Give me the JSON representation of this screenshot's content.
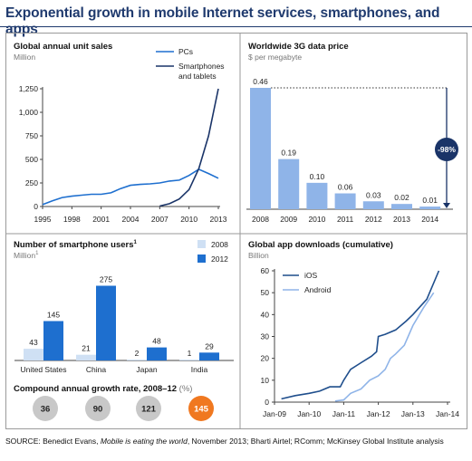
{
  "title": "Exponential growth in mobile Internet services, smartphones, and apps",
  "source_prefix": "SOURCE: Benedict Evans, ",
  "source_italic": "Mobile is eating the world",
  "source_suffix": ", November 2013; Bharti Airtel; RComm; McKinsey Global Institute analysis",
  "colors": {
    "title": "#1f3a6e",
    "dark_blue": "#1f4e8c",
    "light_blue": "#8fb4e8",
    "pale_blue": "#cfe0f4",
    "bright_blue": "#1e6fcf",
    "orange": "#f07820",
    "gray_circle": "#c8c8c8"
  },
  "chart_data": [
    {
      "type": "line",
      "title": "Global annual unit sales",
      "subtitle": "Million",
      "x_ticks": [
        "1995",
        "1998",
        "2001",
        "2004",
        "2007",
        "2010",
        "2013"
      ],
      "y_ticks": [
        "0",
        "250",
        "500",
        "750",
        "1,000",
        "1,250"
      ],
      "ylim": [
        0,
        1250
      ],
      "xlim": [
        1995,
        2013
      ],
      "series": [
        {
          "name": "PCs",
          "color": "#1e6fcf",
          "x": [
            1995,
            1996,
            1997,
            1998,
            1999,
            2000,
            2001,
            2002,
            2003,
            2004,
            2005,
            2006,
            2007,
            2008,
            2009,
            2010,
            2011,
            2012,
            2013
          ],
          "y": [
            20,
            60,
            95,
            110,
            120,
            130,
            130,
            145,
            190,
            225,
            235,
            240,
            250,
            270,
            280,
            330,
            395,
            350,
            300
          ]
        },
        {
          "name": "Smartphones and tablets",
          "name_line2": "and tablets",
          "name_line1": "Smartphones",
          "color": "#1a3468",
          "x": [
            2007,
            2008,
            2009,
            2010,
            2011,
            2012,
            2013
          ],
          "y": [
            5,
            30,
            80,
            180,
            400,
            750,
            1250
          ]
        }
      ]
    },
    {
      "type": "bar",
      "title": "Worldwide 3G data price",
      "subtitle": "$ per megabyte",
      "categories": [
        "2008",
        "2009",
        "2010",
        "2011",
        "2012",
        "2013",
        "2014"
      ],
      "values": [
        0.46,
        0.19,
        0.1,
        0.06,
        0.03,
        0.02,
        0.01
      ],
      "value_labels": [
        "0.46",
        "0.19",
        "0.10",
        "0.06",
        "0.03",
        "0.02",
        "0.01"
      ],
      "annotation": "-98%",
      "ylim": [
        0,
        0.46
      ]
    },
    {
      "type": "bar",
      "title": "Number of smartphone users",
      "title_sup": "1",
      "subtitle": "Million",
      "subtitle_sup": "1",
      "categories": [
        "United States",
        "China",
        "Japan",
        "India"
      ],
      "series": [
        {
          "name": "2008",
          "color": "#cfe0f4",
          "values": [
            43,
            21,
            2,
            1
          ]
        },
        {
          "name": "2012",
          "color": "#1e6fcf",
          "values": [
            145,
            275,
            48,
            29
          ]
        }
      ],
      "cagr_title": "Compound annual growth rate, 2008–12",
      "cagr_unit": "(%)",
      "cagr_values": [
        "36",
        "90",
        "121",
        "145"
      ]
    },
    {
      "type": "line",
      "title": "Global app downloads (cumulative)",
      "subtitle": "Billion",
      "x_ticks": [
        "Jan-09",
        "Jan-10",
        "Jan-11",
        "Jan-12",
        "Jan-13",
        "Jan-14"
      ],
      "y_ticks": [
        "0",
        "10",
        "20",
        "30",
        "40",
        "50",
        "60"
      ],
      "ylim": [
        0,
        60
      ],
      "series": [
        {
          "name": "iOS",
          "color": "#1f4e8c",
          "x": [
            2009.2,
            2009.6,
            2010.0,
            2010.3,
            2010.6,
            2010.9,
            2011.0,
            2011.2,
            2011.5,
            2011.8,
            2011.95,
            2012.0,
            2012.2,
            2012.5,
            2012.8,
            2013.0,
            2013.4,
            2013.75
          ],
          "y": [
            1.5,
            3,
            4,
            5,
            7,
            7,
            10,
            15,
            18,
            21,
            23,
            30,
            31,
            33,
            37,
            40,
            47,
            60
          ]
        },
        {
          "name": "Android",
          "color": "#8fb4e8",
          "x": [
            2010.75,
            2011.0,
            2011.2,
            2011.5,
            2011.75,
            2012.0,
            2012.2,
            2012.35,
            2012.5,
            2012.75,
            2013.0,
            2013.3,
            2013.6
          ],
          "y": [
            0.5,
            1,
            4,
            6,
            10,
            12,
            15,
            20,
            22,
            26,
            35,
            43,
            50
          ]
        }
      ]
    }
  ]
}
